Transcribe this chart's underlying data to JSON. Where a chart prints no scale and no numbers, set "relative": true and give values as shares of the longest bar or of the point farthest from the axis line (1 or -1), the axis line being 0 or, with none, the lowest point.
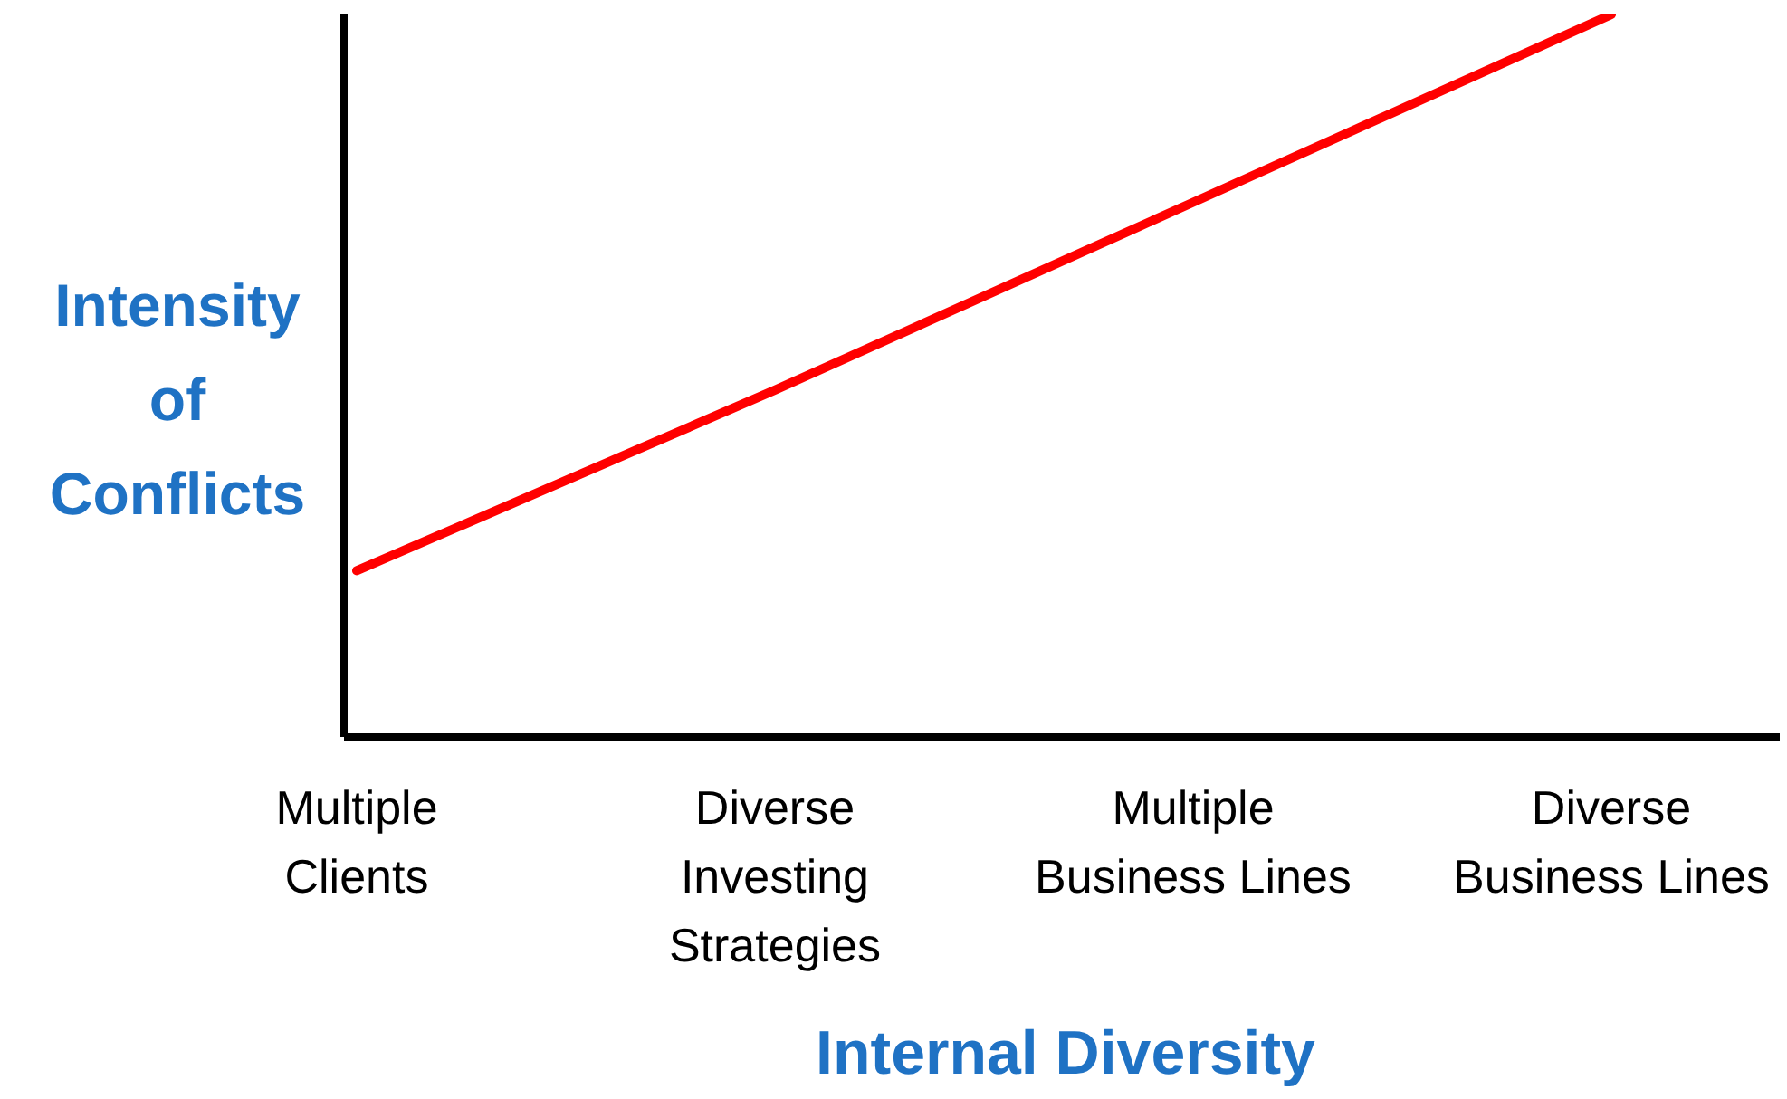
{
  "chart_data": {
    "type": "line",
    "relative": true,
    "xlabel": "Internal Diversity",
    "ylabel": "Intensity of Conflicts",
    "categories": [
      "Multiple Clients",
      "Diverse Investing Strategies",
      "Multiple Business Lines",
      "Diverse Business Lines"
    ],
    "series": [
      {
        "color": "#ff0000",
        "values": [
          0.23,
          0.48,
          0.74,
          1
        ]
      }
    ],
    "grid": false,
    "legend": false,
    "marker": "none",
    "line_style": "solid"
  }
}
